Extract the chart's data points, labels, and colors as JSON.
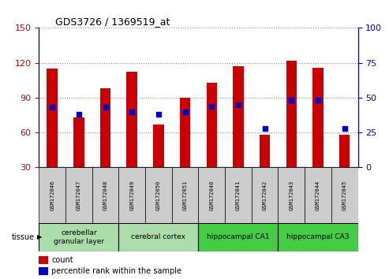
{
  "title": "GDS3726 / 1369519_at",
  "samples": [
    "GSM172046",
    "GSM172047",
    "GSM172048",
    "GSM172049",
    "GSM172050",
    "GSM172051",
    "GSM172040",
    "GSM172041",
    "GSM172042",
    "GSM172043",
    "GSM172044",
    "GSM172045"
  ],
  "count_values": [
    115,
    73,
    98,
    112,
    67,
    90,
    103,
    117,
    58,
    122,
    116,
    58
  ],
  "percentile_values": [
    43,
    38,
    43,
    40,
    38,
    40,
    44,
    45,
    28,
    48,
    48,
    28
  ],
  "ylim_left": [
    30,
    150
  ],
  "ylim_right": [
    0,
    100
  ],
  "yticks_left": [
    30,
    60,
    90,
    120,
    150
  ],
  "yticks_right": [
    0,
    25,
    50,
    75,
    100
  ],
  "bar_color": "#cc0000",
  "dot_color": "#0000cc",
  "left_axis_color": "#cc0000",
  "right_axis_color": "#0000cc",
  "tissue_groups": [
    {
      "label": "cerebellar\ngranular layer",
      "start": 0,
      "end": 3,
      "color": "#aaddaa"
    },
    {
      "label": "cerebral cortex",
      "start": 3,
      "end": 6,
      "color": "#aaddaa"
    },
    {
      "label": "hippocampal CA1",
      "start": 6,
      "end": 9,
      "color": "#44cc44"
    },
    {
      "label": "hippocampal CA3",
      "start": 9,
      "end": 12,
      "color": "#44cc44"
    }
  ],
  "legend_count_label": "count",
  "legend_pct_label": "percentile rank within the sample",
  "tissue_label": "tissue",
  "sample_cell_color": "#cccccc",
  "background_plot": "#ffffff"
}
